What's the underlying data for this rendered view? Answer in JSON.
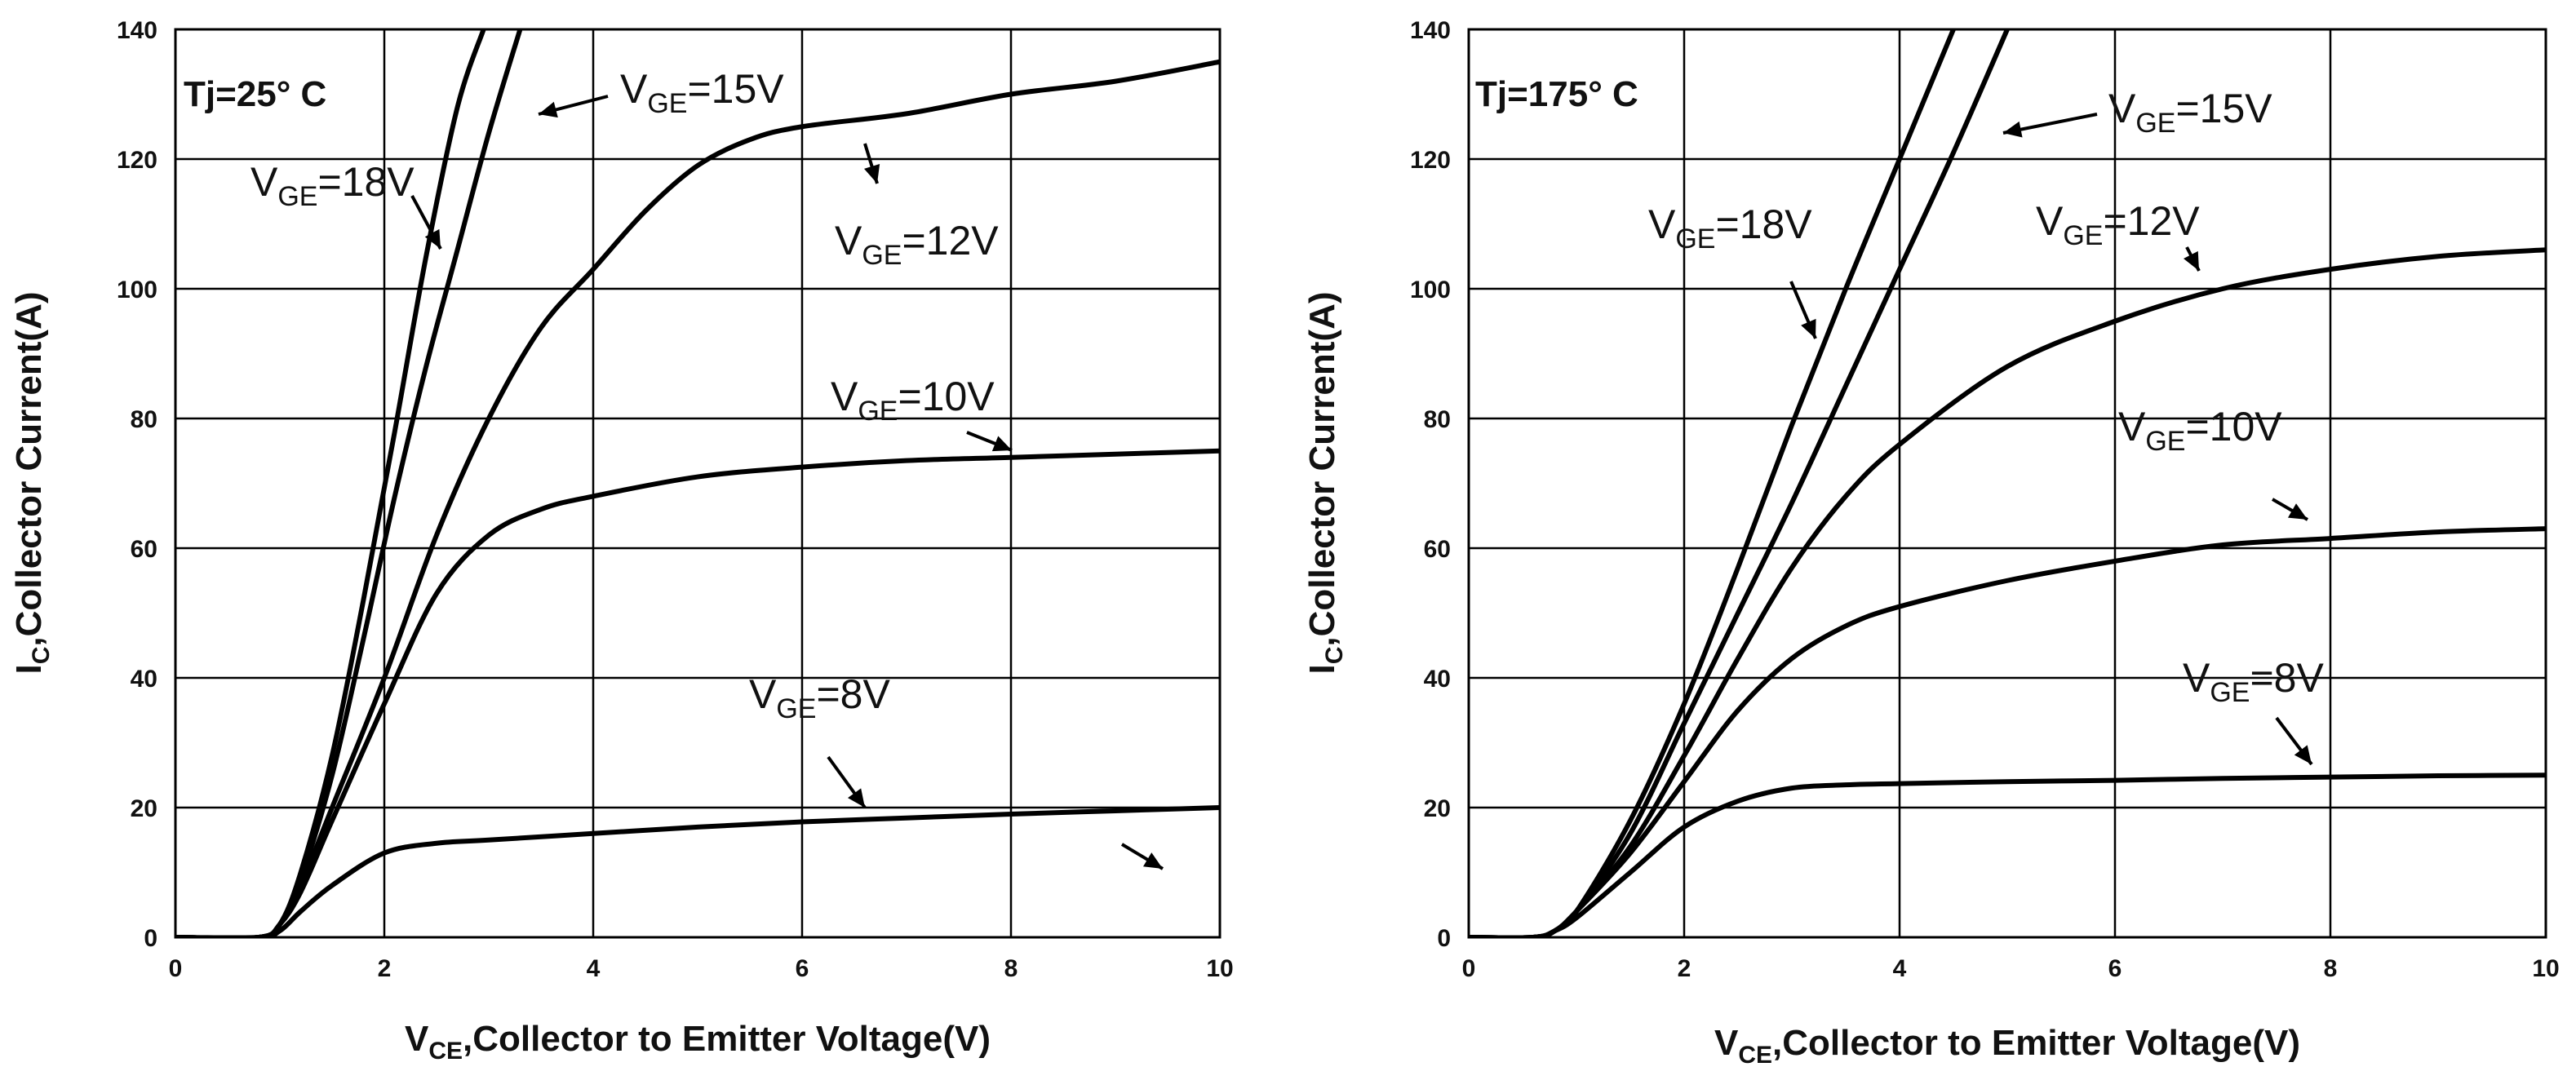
{
  "chart_data": [
    {
      "type": "line",
      "annotation": "Tj=25° C",
      "xlabel_main": "V",
      "xlabel_sub": "CE",
      "xlabel_rest": ",Collector to Emitter Voltage(V)",
      "ylabel_main": "I",
      "ylabel_sub": "C",
      "ylabel_rest": ",Collector Current(A)",
      "xlim": [
        0,
        10
      ],
      "ylim": [
        0,
        140
      ],
      "xticks": [
        "0",
        "2",
        "4",
        "6",
        "8",
        "10"
      ],
      "yticks": [
        "0",
        "20",
        "40",
        "60",
        "80",
        "100",
        "120",
        "140"
      ],
      "grid": true,
      "series": [
        {
          "name": "VGE=18V",
          "label_main": "V",
          "label_sub": "GE",
          "label_rest": "=18V",
          "x": [
            0,
            0.8,
            1.0,
            1.2,
            1.5,
            1.8,
            2.1,
            2.4,
            2.7,
            2.95
          ],
          "y": [
            0,
            0,
            2,
            10,
            28,
            52,
            78,
            105,
            128,
            140
          ]
        },
        {
          "name": "VGE=15V",
          "label_main": "V",
          "label_sub": "GE",
          "label_rest": "=15V",
          "x": [
            0,
            0.8,
            1.0,
            1.2,
            1.5,
            1.8,
            2.1,
            2.4,
            2.7,
            3.0,
            3.3
          ],
          "y": [
            0,
            0,
            2,
            9,
            25,
            46,
            68,
            88,
            106,
            124,
            140
          ]
        },
        {
          "name": "VGE=12V",
          "label_main": "V",
          "label_sub": "GE",
          "label_rest": "=12V",
          "x": [
            0,
            0.8,
            1.0,
            1.2,
            1.5,
            2.0,
            2.5,
            3.0,
            3.5,
            4.0,
            4.5,
            5.0,
            5.5,
            6.0,
            7.0,
            8.0,
            9.0,
            10.0
          ],
          "y": [
            0,
            0,
            2,
            8,
            20,
            40,
            62,
            80,
            94,
            103,
            112,
            119,
            123,
            125,
            127,
            130,
            132,
            135
          ]
        },
        {
          "name": "VGE=10V",
          "label_main": "V",
          "label_sub": "GE",
          "label_rest": "=10V",
          "x": [
            0,
            0.8,
            1.0,
            1.2,
            1.5,
            2.0,
            2.5,
            3.0,
            3.5,
            4.0,
            5.0,
            6.0,
            7.0,
            8.0,
            9.0,
            10.0
          ],
          "y": [
            0,
            0,
            2,
            7,
            18,
            36,
            53,
            62,
            66,
            68,
            71,
            72.5,
            73.5,
            74,
            74.5,
            75
          ]
        },
        {
          "name": "VGE=8V",
          "label_main": "V",
          "label_sub": "GE",
          "label_rest": "=8V",
          "x": [
            0,
            0.8,
            1.0,
            1.2,
            1.5,
            2.0,
            2.5,
            3.0,
            4.0,
            5.0,
            6.0,
            7.0,
            8.0,
            9.0,
            10.0
          ],
          "y": [
            0,
            0,
            1,
            4,
            8,
            13,
            14.5,
            15,
            16,
            17,
            17.8,
            18.4,
            19,
            19.5,
            20
          ]
        }
      ]
    },
    {
      "type": "line",
      "annotation": "Tj=175° C",
      "xlabel_main": "V",
      "xlabel_sub": "CE",
      "xlabel_rest": ",Collector to Emitter Voltage(V)",
      "ylabel_main": "I",
      "ylabel_sub": "C",
      "ylabel_rest": ",Collector Current(A)",
      "xlim": [
        0,
        10
      ],
      "ylim": [
        0,
        140
      ],
      "xticks": [
        "0",
        "2",
        "4",
        "6",
        "8",
        "10"
      ],
      "yticks": [
        "0",
        "20",
        "40",
        "60",
        "80",
        "100",
        "120",
        "140"
      ],
      "grid": true,
      "series": [
        {
          "name": "VGE=18V",
          "label_main": "V",
          "label_sub": "GE",
          "label_rest": "=18V",
          "x": [
            0,
            0.6,
            0.8,
            1.0,
            1.5,
            2.0,
            2.5,
            3.0,
            3.5,
            4.0,
            4.5
          ],
          "y": [
            0,
            0,
            1,
            4,
            18,
            36,
            57,
            79,
            100,
            120,
            140
          ]
        },
        {
          "name": "VGE=15V",
          "label_main": "V",
          "label_sub": "GE",
          "label_rest": "=15V",
          "x": [
            0,
            0.6,
            0.8,
            1.0,
            1.5,
            2.0,
            2.5,
            3.0,
            3.5,
            4.0,
            4.5,
            5.0
          ],
          "y": [
            0,
            0,
            1,
            4,
            16,
            33,
            50,
            67,
            85,
            103,
            121,
            140
          ]
        },
        {
          "name": "VGE=12V",
          "label_main": "V",
          "label_sub": "GE",
          "label_rest": "=12V",
          "x": [
            0,
            0.6,
            0.8,
            1.0,
            1.5,
            2.0,
            2.5,
            3.0,
            3.5,
            4.0,
            5.0,
            6.0,
            7.0,
            8.0,
            9.0,
            10.0
          ],
          "y": [
            0,
            0,
            1,
            4,
            14,
            28,
            43,
            57,
            68,
            76,
            88,
            95,
            100,
            103,
            105,
            106
          ]
        },
        {
          "name": "VGE=10V",
          "label_main": "V",
          "label_sub": "GE",
          "label_rest": "=10V",
          "x": [
            0,
            0.6,
            0.8,
            1.0,
            1.5,
            2.0,
            2.5,
            3.0,
            3.5,
            4.0,
            5.0,
            6.0,
            7.0,
            8.0,
            9.0,
            10.0
          ],
          "y": [
            0,
            0,
            1,
            4,
            13,
            24,
            35,
            43,
            48,
            51,
            55,
            58,
            60.5,
            61.5,
            62.5,
            63
          ]
        },
        {
          "name": "VGE=8V",
          "label_main": "V",
          "label_sub": "GE",
          "label_rest": "=8V",
          "x": [
            0,
            0.6,
            0.8,
            1.0,
            1.5,
            2.0,
            2.5,
            3.0,
            3.5,
            4.0,
            5.0,
            6.0,
            7.0,
            8.0,
            9.0,
            10.0
          ],
          "y": [
            0,
            0,
            1,
            3,
            10,
            17,
            21,
            23,
            23.5,
            23.7,
            24,
            24.2,
            24.5,
            24.7,
            24.9,
            25
          ]
        }
      ]
    }
  ]
}
